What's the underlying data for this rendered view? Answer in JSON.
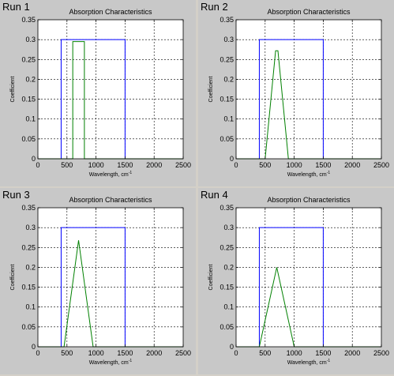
{
  "chart_data": [
    {
      "panel_label": "Run 1",
      "type": "line",
      "title": "Absorption Characteristics",
      "xlabel": "Wavelength, cm",
      "xlabel_sup": "-1",
      "ylabel": "Coefficient",
      "xlim": [
        0,
        2500
      ],
      "ylim": [
        0,
        0.35
      ],
      "xticks": [
        "0",
        "500",
        "1000",
        "1500",
        "2000",
        "2500"
      ],
      "yticks": [
        "0",
        "0.05",
        "0.1",
        "0.15",
        "0.2",
        "0.25",
        "0.3",
        "0.35"
      ],
      "grid": true,
      "series": [
        {
          "color": "#0000ff",
          "x": [
            0,
            400,
            400,
            1500,
            1500,
            2500
          ],
          "y": [
            0,
            0,
            0.3,
            0.3,
            0,
            0
          ]
        },
        {
          "color": "#008000",
          "x": [
            0,
            600,
            600,
            800,
            800,
            2500
          ],
          "y": [
            0,
            0,
            0.295,
            0.295,
            0,
            0
          ]
        }
      ]
    },
    {
      "panel_label": "Run 2",
      "type": "line",
      "title": "Absorption Characteristics",
      "xlabel": "Wavelength, cm",
      "xlabel_sup": "-1",
      "ylabel": "Coefficient",
      "xlim": [
        0,
        2500
      ],
      "ylim": [
        0,
        0.35
      ],
      "xticks": [
        "0",
        "500",
        "1000",
        "1500",
        "2000",
        "2500"
      ],
      "yticks": [
        "0",
        "0.05",
        "0.1",
        "0.15",
        "0.2",
        "0.25",
        "0.3",
        "0.35"
      ],
      "grid": true,
      "series": [
        {
          "color": "#0000ff",
          "x": [
            0,
            400,
            400,
            1500,
            1500,
            2500
          ],
          "y": [
            0,
            0,
            0.3,
            0.3,
            0,
            0
          ]
        },
        {
          "color": "#008000",
          "x": [
            0,
            500,
            680,
            720,
            900,
            2500
          ],
          "y": [
            0,
            0,
            0.272,
            0.272,
            0,
            0
          ]
        }
      ]
    },
    {
      "panel_label": "Run 3",
      "type": "line",
      "title": "Absorption Characteristics",
      "xlabel": "Wavelength, cm",
      "xlabel_sup": "-1",
      "ylabel": "Coefficient",
      "xlim": [
        0,
        2500
      ],
      "ylim": [
        0,
        0.35
      ],
      "xticks": [
        "0",
        "500",
        "1000",
        "1500",
        "2000",
        "2500"
      ],
      "yticks": [
        "0",
        "0.05",
        "0.1",
        "0.15",
        "0.2",
        "0.25",
        "0.3",
        "0.35"
      ],
      "grid": true,
      "series": [
        {
          "color": "#0000ff",
          "x": [
            0,
            400,
            400,
            1500,
            1500,
            2500
          ],
          "y": [
            0,
            0,
            0.3,
            0.3,
            0,
            0
          ]
        },
        {
          "color": "#008000",
          "x": [
            0,
            450,
            700,
            950,
            2500
          ],
          "y": [
            0,
            0,
            0.268,
            0,
            0
          ]
        }
      ]
    },
    {
      "panel_label": "Run 4",
      "type": "line",
      "title": "Absorption Characteristics",
      "xlabel": "Wavelength, cm",
      "xlabel_sup": "-1",
      "ylabel": "Coefficient",
      "xlim": [
        0,
        2500
      ],
      "ylim": [
        0,
        0.35
      ],
      "xticks": [
        "0",
        "500",
        "1000",
        "1500",
        "2000",
        "2500"
      ],
      "yticks": [
        "0",
        "0.05",
        "0.1",
        "0.15",
        "0.2",
        "0.25",
        "0.3",
        "0.35"
      ],
      "grid": true,
      "series": [
        {
          "color": "#0000ff",
          "x": [
            0,
            400,
            400,
            1500,
            1500,
            2500
          ],
          "y": [
            0,
            0,
            0.3,
            0.3,
            0,
            0
          ]
        },
        {
          "color": "#008000",
          "x": [
            0,
            400,
            700,
            1000,
            2500
          ],
          "y": [
            0,
            0,
            0.2,
            0,
            0
          ]
        }
      ]
    }
  ]
}
